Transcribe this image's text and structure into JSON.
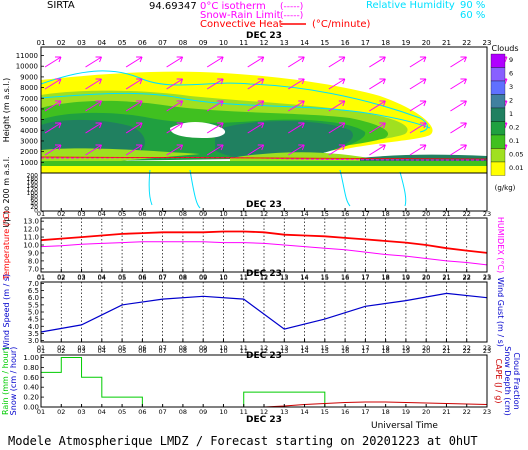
{
  "header": {
    "station": "SIRTA",
    "code": "94.69347",
    "legend_isotherm": "0°C isotherm",
    "legend_isotherm_ghost": "(-----)",
    "legend_snow": "Snow-Rain Limit",
    "legend_snow_ghost": "(-----)",
    "legend_conv": "Convective Heat",
    "legend_conv_ghost": "(°C/minute)",
    "legend_rh": "Relative Humidity",
    "rh_90": "90 %",
    "rh_60": "60 %"
  },
  "footer": {
    "universal_time": "Universal Time",
    "model_line": "Modele Atmospherique LMDZ / Forecast starting on 20201223 at 0hUT"
  },
  "colors": {
    "isotherm": "#ff00ff",
    "snow": "#ff00ff",
    "convective": "#ff0000",
    "rh": "#00e0ff",
    "wind_arrows": "#ff00ff",
    "temperature": "#ff0000",
    "humidex": "#ff00ff",
    "wind": "#0000cc",
    "rain": "#00cc00",
    "cape": "#cc0000"
  },
  "chart_data": [
    {
      "type": "heatmap",
      "id": "clouds",
      "date_label": "DEC 23",
      "x_ticks": [
        "01",
        "02",
        "03",
        "04",
        "05",
        "06",
        "07",
        "08",
        "09",
        "10",
        "11",
        "12",
        "13",
        "14",
        "15",
        "16",
        "17",
        "18",
        "19",
        "20",
        "21",
        "22",
        "23"
      ],
      "ylabel": "Height (m a.s.l.)",
      "ylabel2": "Up to 200 m a.s.l.",
      "y_ticks_upper": [
        11000,
        10000,
        9000,
        8000,
        7000,
        6000,
        5000,
        4000,
        3000,
        2000,
        1000
      ],
      "y_ticks_lower": [
        200,
        180,
        160,
        140,
        120,
        100,
        80,
        60,
        40,
        20,
        0
      ],
      "colorbar_title": "Clouds",
      "colorbar_unit": "(g/kg)",
      "colorbar_levels": [
        "9",
        "6",
        "3",
        "2",
        "1",
        "0.2",
        "0.1",
        "0.05",
        "0.01"
      ],
      "colorbar_colors": [
        "#b000ff",
        "#8860ff",
        "#6070ff",
        "#4080a0",
        "#208060",
        "#20a040",
        "#40c020",
        "#a0e020",
        "#ffff00"
      ]
    },
    {
      "type": "line",
      "id": "temperature",
      "date_label": "DEC 23",
      "x_ticks": [
        "01",
        "02",
        "03",
        "04",
        "05",
        "06",
        "07",
        "08",
        "09",
        "10",
        "11",
        "12",
        "13",
        "14",
        "15",
        "16",
        "17",
        "18",
        "19",
        "20",
        "21",
        "22",
        "23"
      ],
      "ylabel": "Temperature (°C)",
      "ylabel_right": "HUMIDEX (°C)",
      "y_ticks": [
        13.0,
        12.0,
        11.0,
        10.0,
        9.0,
        8.0,
        7.0
      ],
      "ylim": [
        6.6,
        13.4
      ],
      "series": [
        {
          "name": "Temperature",
          "values": [
            10.6,
            10.8,
            11.0,
            11.2,
            11.4,
            11.5,
            11.6,
            11.6,
            11.6,
            11.7,
            11.7,
            11.6,
            11.3,
            11.2,
            11.1,
            10.9,
            10.7,
            10.5,
            10.3,
            10.0,
            9.6,
            9.3,
            9.0
          ]
        },
        {
          "name": "Humidex",
          "values": [
            9.8,
            9.9,
            10.1,
            10.2,
            10.3,
            10.4,
            10.4,
            10.4,
            10.4,
            10.3,
            10.3,
            10.2,
            10.0,
            9.8,
            9.6,
            9.4,
            9.1,
            8.8,
            8.6,
            8.3,
            8.0,
            7.8,
            7.5
          ]
        }
      ]
    },
    {
      "type": "line",
      "id": "wind",
      "date_label": "DEC 23",
      "x_ticks": [
        "01",
        "02",
        "03",
        "04",
        "05",
        "06",
        "07",
        "08",
        "09",
        "10",
        "11",
        "12",
        "13",
        "14",
        "15",
        "16",
        "17",
        "18",
        "19",
        "20",
        "21",
        "22",
        "23"
      ],
      "ylabel": "Wind Speed (m / s)",
      "ylabel_right": "Wind Gust (m / s)",
      "y_ticks": [
        7.0,
        6.5,
        6.0,
        5.5,
        5.0,
        4.5,
        4.0,
        3.5,
        3.0
      ],
      "ylim": [
        2.9,
        7.1
      ],
      "series": [
        {
          "name": "Wind Speed",
          "values": [
            3.6,
            null,
            4.1,
            4.8,
            5.5,
            null,
            5.9,
            null,
            6.1,
            null,
            5.9,
            null,
            3.8,
            null,
            4.5,
            null,
            5.4,
            null,
            5.8,
            null,
            6.3,
            null,
            6.0
          ]
        }
      ]
    },
    {
      "type": "line",
      "id": "precip",
      "date_label": "DEC 23",
      "x_ticks": [
        "01",
        "02",
        "03",
        "04",
        "05",
        "06",
        "07",
        "08",
        "09",
        "10",
        "11",
        "12",
        "13",
        "14",
        "15",
        "16",
        "17",
        "18",
        "19",
        "20",
        "21",
        "22",
        "23"
      ],
      "ylabel": "Rain (mm / hour)",
      "ylabel2": "Snow (cm / hour)",
      "ylabel_right": "CAPE (J / g)",
      "ylabel_right2": "Snow Depth (cm)",
      "ylabel_right3": "Cloud Fraction",
      "y_ticks": [
        1.0,
        0.8,
        0.6,
        0.4,
        0.2,
        0.0
      ],
      "ylim": [
        0,
        1.05
      ],
      "series": [
        {
          "name": "Rain",
          "values": [
            0.7,
            1.0,
            0.6,
            0.2,
            0.2,
            0.0,
            0.0,
            0.0,
            0.0,
            0.0,
            0.3,
            0.3,
            0.3,
            0.3,
            0.0,
            0.0,
            0.0,
            0.0,
            0.0,
            0.0,
            0.0,
            0.0
          ]
        },
        {
          "name": "CAPE",
          "values": [
            0,
            0,
            0,
            0,
            0,
            0,
            0,
            0,
            0,
            0,
            0,
            0,
            0.02,
            0.05,
            0.07,
            0.09,
            0.1,
            0.1,
            0.09,
            0.08,
            0.07,
            0.06,
            0.05
          ]
        }
      ]
    }
  ]
}
